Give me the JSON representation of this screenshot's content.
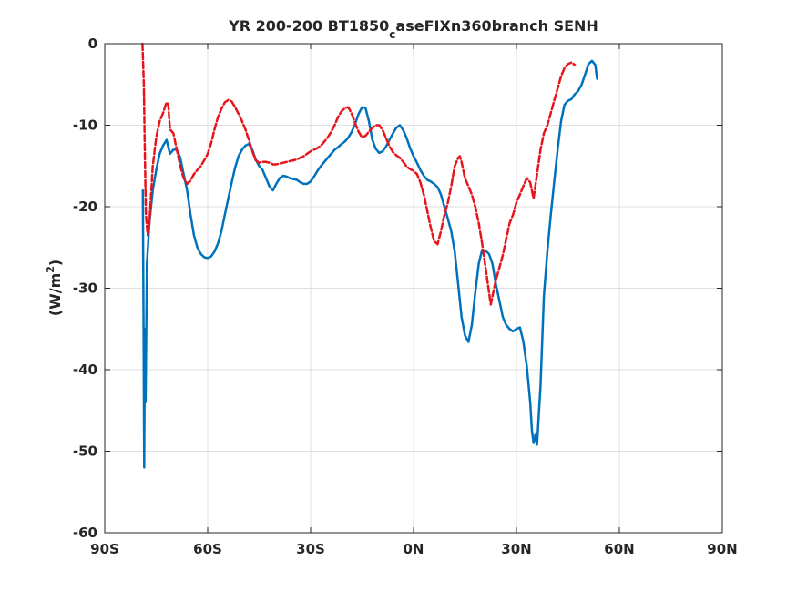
{
  "chart_data": {
    "type": "line",
    "title": "YR 200-200 BT1850",
    "title_subscript": "c",
    "title_rest": "aseFIXn360branch SENH",
    "ylabel_prefix": "(W/m",
    "ylabel_sup": "2",
    "ylabel_suffix": ")",
    "xlim": [
      -90,
      90
    ],
    "ylim": [
      -60,
      0
    ],
    "grid": true,
    "x_ticks": [
      {
        "value": -90,
        "label": "90S"
      },
      {
        "value": -60,
        "label": "60S"
      },
      {
        "value": -30,
        "label": "30S"
      },
      {
        "value": 0,
        "label": "0N"
      },
      {
        "value": 30,
        "label": "30N"
      },
      {
        "value": 60,
        "label": "60N"
      },
      {
        "value": 90,
        "label": "90N"
      }
    ],
    "y_ticks": [
      {
        "value": 0,
        "label": "0"
      },
      {
        "value": -10,
        "label": "-10"
      },
      {
        "value": -20,
        "label": "-20"
      },
      {
        "value": -30,
        "label": "-30"
      },
      {
        "value": -40,
        "label": "-40"
      },
      {
        "value": -50,
        "label": "-50"
      },
      {
        "value": -60,
        "label": "-60"
      }
    ],
    "series": [
      {
        "color": "#0072BD",
        "dash": "solid",
        "points": [
          [
            -78.9,
            -18.0
          ],
          [
            -78.7,
            -35.0
          ],
          [
            -78.5,
            -52.0
          ],
          [
            -78.3,
            -35.0
          ],
          [
            -78.1,
            -44.0
          ],
          [
            -77.7,
            -27.0
          ],
          [
            -77.0,
            -22.0
          ],
          [
            -76.0,
            -18.0
          ],
          [
            -75.0,
            -15.5
          ],
          [
            -74.0,
            -13.5
          ],
          [
            -73.0,
            -12.5
          ],
          [
            -72.0,
            -11.8
          ],
          [
            -71.0,
            -13.5
          ],
          [
            -70.0,
            -13.0
          ],
          [
            -69.0,
            -13.0
          ],
          [
            -68.0,
            -14.0
          ],
          [
            -67.0,
            -16.0
          ],
          [
            -66.0,
            -18.0
          ],
          [
            -65.0,
            -21.0
          ],
          [
            -64.0,
            -23.5
          ],
          [
            -63.0,
            -25.0
          ],
          [
            -62.0,
            -25.8
          ],
          [
            -61.0,
            -26.2
          ],
          [
            -60.0,
            -26.3
          ],
          [
            -59.0,
            -26.1
          ],
          [
            -58.0,
            -25.5
          ],
          [
            -57.0,
            -24.5
          ],
          [
            -56.0,
            -23.0
          ],
          [
            -55.0,
            -21.0
          ],
          [
            -54.0,
            -19.0
          ],
          [
            -53.0,
            -17.0
          ],
          [
            -52.0,
            -15.2
          ],
          [
            -51.0,
            -13.8
          ],
          [
            -50.0,
            -13.0
          ],
          [
            -49.0,
            -12.5
          ],
          [
            -48.0,
            -12.3
          ],
          [
            -47.0,
            -13.0
          ],
          [
            -46.0,
            -14.2
          ],
          [
            -45.0,
            -15.0
          ],
          [
            -44.0,
            -15.5
          ],
          [
            -43.0,
            -16.5
          ],
          [
            -42.0,
            -17.5
          ],
          [
            -41.0,
            -18.0
          ],
          [
            -40.0,
            -17.2
          ],
          [
            -39.0,
            -16.5
          ],
          [
            -38.0,
            -16.2
          ],
          [
            -37.0,
            -16.3
          ],
          [
            -36.0,
            -16.5
          ],
          [
            -35.0,
            -16.6
          ],
          [
            -34.0,
            -16.7
          ],
          [
            -33.0,
            -17.0
          ],
          [
            -32.0,
            -17.2
          ],
          [
            -31.0,
            -17.2
          ],
          [
            -30.0,
            -16.9
          ],
          [
            -29.0,
            -16.3
          ],
          [
            -28.0,
            -15.6
          ],
          [
            -27.0,
            -15.0
          ],
          [
            -26.0,
            -14.5
          ],
          [
            -25.0,
            -14.0
          ],
          [
            -24.0,
            -13.5
          ],
          [
            -23.0,
            -13.0
          ],
          [
            -22.0,
            -12.7
          ],
          [
            -21.0,
            -12.3
          ],
          [
            -20.0,
            -12.0
          ],
          [
            -19.0,
            -11.5
          ],
          [
            -18.0,
            -10.8
          ],
          [
            -17.0,
            -9.8
          ],
          [
            -16.0,
            -8.6
          ],
          [
            -15.0,
            -7.8
          ],
          [
            -14.0,
            -7.9
          ],
          [
            -13.0,
            -9.5
          ],
          [
            -12.0,
            -11.8
          ],
          [
            -11.0,
            -12.9
          ],
          [
            -10.0,
            -13.4
          ],
          [
            -9.0,
            -13.2
          ],
          [
            -8.0,
            -12.6
          ],
          [
            -7.0,
            -11.8
          ],
          [
            -6.0,
            -11.0
          ],
          [
            -5.0,
            -10.3
          ],
          [
            -4.0,
            -10.0
          ],
          [
            -3.0,
            -10.6
          ],
          [
            -2.0,
            -11.6
          ],
          [
            -1.0,
            -12.8
          ],
          [
            0.0,
            -13.8
          ],
          [
            1.0,
            -14.6
          ],
          [
            2.0,
            -15.5
          ],
          [
            3.0,
            -16.2
          ],
          [
            4.0,
            -16.7
          ],
          [
            5.0,
            -16.9
          ],
          [
            6.0,
            -17.2
          ],
          [
            7.0,
            -17.6
          ],
          [
            8.0,
            -18.5
          ],
          [
            9.0,
            -20.0
          ],
          [
            10.0,
            -21.5
          ],
          [
            11.0,
            -23.0
          ],
          [
            12.0,
            -25.5
          ],
          [
            13.0,
            -29.5
          ],
          [
            14.0,
            -33.5
          ],
          [
            15.0,
            -35.8
          ],
          [
            16.0,
            -36.6
          ],
          [
            17.0,
            -34.5
          ],
          [
            18.0,
            -30.5
          ],
          [
            19.0,
            -27.0
          ],
          [
            20.0,
            -25.3
          ],
          [
            21.0,
            -25.4
          ],
          [
            22.0,
            -25.8
          ],
          [
            23.0,
            -27.0
          ],
          [
            24.0,
            -29.5
          ],
          [
            25.0,
            -31.5
          ],
          [
            26.0,
            -33.5
          ],
          [
            27.0,
            -34.5
          ],
          [
            28.0,
            -35.0
          ],
          [
            29.0,
            -35.3
          ],
          [
            30.0,
            -35.0
          ],
          [
            31.0,
            -34.8
          ],
          [
            32.0,
            -36.5
          ],
          [
            33.0,
            -39.5
          ],
          [
            34.0,
            -44.0
          ],
          [
            34.5,
            -47.5
          ],
          [
            35.0,
            -49.0
          ],
          [
            35.5,
            -48.0
          ],
          [
            36.0,
            -49.2
          ],
          [
            37.0,
            -42.0
          ],
          [
            38.0,
            -31.0
          ],
          [
            39.0,
            -25.5
          ],
          [
            40.0,
            -21.0
          ],
          [
            41.0,
            -17.0
          ],
          [
            42.0,
            -13.0
          ],
          [
            43.0,
            -9.5
          ],
          [
            44.0,
            -7.5
          ],
          [
            45.0,
            -7.0
          ],
          [
            46.0,
            -6.8
          ],
          [
            47.0,
            -6.2
          ],
          [
            48.0,
            -5.8
          ],
          [
            49.0,
            -5.0
          ],
          [
            50.0,
            -3.8
          ],
          [
            51.0,
            -2.5
          ],
          [
            52.0,
            -2.1
          ],
          [
            53.0,
            -2.6
          ],
          [
            53.5,
            -4.3
          ]
        ]
      },
      {
        "color": "#E8141B",
        "dash": "dashed",
        "points": [
          [
            -79.0,
            0.0
          ],
          [
            -78.6,
            -5.0
          ],
          [
            -78.3,
            -14.0
          ],
          [
            -78.0,
            -21.0
          ],
          [
            -77.5,
            -23.5
          ],
          [
            -77.0,
            -22.0
          ],
          [
            -76.0,
            -15.0
          ],
          [
            -75.0,
            -11.5
          ],
          [
            -74.0,
            -9.5
          ],
          [
            -73.0,
            -8.5
          ],
          [
            -72.0,
            -7.2
          ],
          [
            -71.5,
            -7.5
          ],
          [
            -71.0,
            -10.5
          ],
          [
            -70.0,
            -11.0
          ],
          [
            -69.0,
            -13.0
          ],
          [
            -68.0,
            -15.0
          ],
          [
            -67.0,
            -16.5
          ],
          [
            -66.0,
            -17.2
          ],
          [
            -65.0,
            -16.8
          ],
          [
            -64.0,
            -16.0
          ],
          [
            -63.0,
            -15.5
          ],
          [
            -62.0,
            -15.0
          ],
          [
            -61.0,
            -14.3
          ],
          [
            -60.0,
            -13.5
          ],
          [
            -59.0,
            -12.2
          ],
          [
            -58.0,
            -10.5
          ],
          [
            -57.0,
            -9.0
          ],
          [
            -56.0,
            -8.0
          ],
          [
            -55.0,
            -7.2
          ],
          [
            -54.0,
            -6.9
          ],
          [
            -53.0,
            -7.1
          ],
          [
            -52.0,
            -7.8
          ],
          [
            -51.0,
            -8.6
          ],
          [
            -50.0,
            -9.5
          ],
          [
            -49.0,
            -10.5
          ],
          [
            -48.0,
            -11.8
          ],
          [
            -47.0,
            -13.2
          ],
          [
            -46.0,
            -14.3
          ],
          [
            -45.0,
            -14.6
          ],
          [
            -44.0,
            -14.5
          ],
          [
            -43.0,
            -14.5
          ],
          [
            -42.0,
            -14.6
          ],
          [
            -41.0,
            -14.8
          ],
          [
            -40.0,
            -14.8
          ],
          [
            -39.0,
            -14.7
          ],
          [
            -38.0,
            -14.6
          ],
          [
            -37.0,
            -14.5
          ],
          [
            -36.0,
            -14.4
          ],
          [
            -35.0,
            -14.3
          ],
          [
            -34.0,
            -14.2
          ],
          [
            -33.0,
            -14.0
          ],
          [
            -32.0,
            -13.8
          ],
          [
            -31.0,
            -13.5
          ],
          [
            -30.0,
            -13.2
          ],
          [
            -29.0,
            -13.0
          ],
          [
            -28.0,
            -12.8
          ],
          [
            -27.0,
            -12.5
          ],
          [
            -26.0,
            -12.0
          ],
          [
            -25.0,
            -11.5
          ],
          [
            -24.0,
            -10.8
          ],
          [
            -23.0,
            -10.0
          ],
          [
            -22.0,
            -9.0
          ],
          [
            -21.0,
            -8.3
          ],
          [
            -20.0,
            -7.9
          ],
          [
            -19.0,
            -7.8
          ],
          [
            -18.0,
            -8.6
          ],
          [
            -17.0,
            -9.8
          ],
          [
            -16.0,
            -10.8
          ],
          [
            -15.0,
            -11.5
          ],
          [
            -14.0,
            -11.3
          ],
          [
            -13.0,
            -10.8
          ],
          [
            -12.0,
            -10.3
          ],
          [
            -11.0,
            -10.0
          ],
          [
            -10.0,
            -10.0
          ],
          [
            -9.0,
            -10.6
          ],
          [
            -8.0,
            -11.6
          ],
          [
            -7.0,
            -12.6
          ],
          [
            -6.0,
            -13.3
          ],
          [
            -5.0,
            -13.7
          ],
          [
            -4.0,
            -14.0
          ],
          [
            -3.0,
            -14.5
          ],
          [
            -2.0,
            -15.1
          ],
          [
            -1.0,
            -15.4
          ],
          [
            0.0,
            -15.6
          ],
          [
            1.0,
            -16.0
          ],
          [
            2.0,
            -17.0
          ],
          [
            3.0,
            -18.5
          ],
          [
            4.0,
            -20.5
          ],
          [
            5.0,
            -22.5
          ],
          [
            6.0,
            -24.2
          ],
          [
            7.0,
            -24.6
          ],
          [
            8.0,
            -23.0
          ],
          [
            9.0,
            -21.0
          ],
          [
            10.0,
            -19.5
          ],
          [
            11.0,
            -17.5
          ],
          [
            12.0,
            -15.0
          ],
          [
            13.0,
            -14.0
          ],
          [
            13.5,
            -13.8
          ],
          [
            14.0,
            -14.5
          ],
          [
            15.0,
            -16.5
          ],
          [
            16.0,
            -17.5
          ],
          [
            17.0,
            -18.5
          ],
          [
            18.0,
            -20.0
          ],
          [
            19.0,
            -22.0
          ],
          [
            20.0,
            -24.5
          ],
          [
            21.0,
            -27.5
          ],
          [
            22.0,
            -30.5
          ],
          [
            22.5,
            -32.0
          ],
          [
            23.0,
            -31.0
          ],
          [
            24.0,
            -29.0
          ],
          [
            25.0,
            -27.5
          ],
          [
            26.0,
            -26.0
          ],
          [
            27.0,
            -24.0
          ],
          [
            28.0,
            -22.0
          ],
          [
            29.0,
            -21.0
          ],
          [
            30.0,
            -19.5
          ],
          [
            31.0,
            -18.5
          ],
          [
            32.0,
            -17.5
          ],
          [
            33.0,
            -16.5
          ],
          [
            34.0,
            -17.0
          ],
          [
            35.0,
            -19.0
          ],
          [
            36.0,
            -16.0
          ],
          [
            37.0,
            -13.0
          ],
          [
            38.0,
            -11.0
          ],
          [
            39.0,
            -10.0
          ],
          [
            40.0,
            -8.5
          ],
          [
            41.0,
            -7.0
          ],
          [
            42.0,
            -5.5
          ],
          [
            43.0,
            -4.0
          ],
          [
            44.0,
            -3.0
          ],
          [
            45.0,
            -2.5
          ],
          [
            46.0,
            -2.3
          ],
          [
            47.0,
            -2.6
          ]
        ]
      }
    ]
  }
}
